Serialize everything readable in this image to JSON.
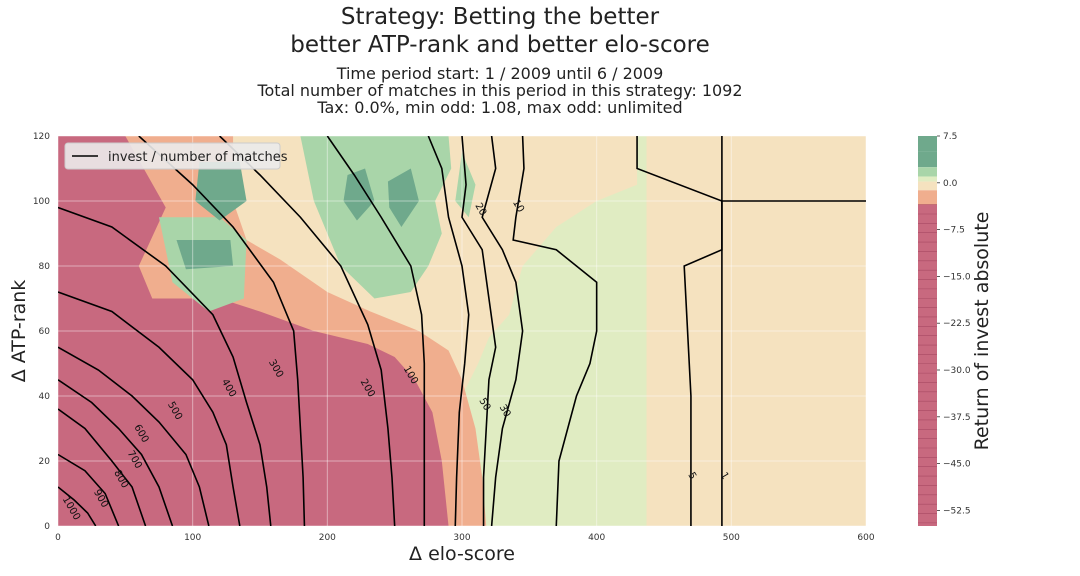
{
  "chart_data": {
    "type": "heatmap",
    "title": "Strategy: Betting the better",
    "subtitle": "better ATP-rank and better elo-score",
    "info_lines": [
      "Time period start: 1 / 2009 until 6 / 2009",
      "Total number of matches in this period in this strategy: 1092",
      "Tax: 0.0%, min odd: 1.08, max odd: unlimited"
    ],
    "xlabel": "Δ elo-score",
    "ylabel": "Δ ATP-rank",
    "colorbar_label": "Return of invest absolute",
    "xlim": [
      0,
      600
    ],
    "ylim": [
      0,
      120
    ],
    "xticks": [
      "0",
      "100",
      "200",
      "300",
      "400",
      "500",
      "600"
    ],
    "yticks": [
      "0",
      "20",
      "40",
      "60",
      "80",
      "100",
      "120"
    ],
    "colorbar_range": [
      -55,
      7.5
    ],
    "colorbar_ticks": [
      "7.5",
      "0.0",
      "−7.5",
      "−15.0",
      "−22.5",
      "−30.0",
      "−37.5",
      "−45.0",
      "−52.5"
    ],
    "legend": {
      "entries": [
        "invest / number of matches"
      ],
      "placement": "top-left"
    },
    "grid": true,
    "colors": {
      "strong_negative": "#c8697f",
      "mild_negative": "#f0ae8e",
      "near_zero": "#f5e2bf",
      "slight_positive": "#e0ecc2",
      "positive": "#a9d5a9",
      "strong_positive": "#6fa98c",
      "contour_line": "#000000"
    },
    "regions": [
      {
        "color": "slight_positive",
        "points": [
          [
            0,
            120
          ],
          [
            600,
            120
          ],
          [
            600,
            0
          ],
          [
            0,
            0
          ]
        ]
      },
      {
        "color": "near_zero",
        "points": [
          [
            0,
            120
          ],
          [
            430,
            120
          ],
          [
            430,
            105
          ],
          [
            400,
            100
          ],
          [
            370,
            92
          ],
          [
            345,
            80
          ],
          [
            335,
            65
          ],
          [
            320,
            58
          ],
          [
            312,
            50
          ],
          [
            300,
            40
          ],
          [
            290,
            28
          ],
          [
            285,
            15
          ],
          [
            282,
            0
          ],
          [
            0,
            0
          ]
        ]
      },
      {
        "color": "mild_negative",
        "points": [
          [
            0,
            120
          ],
          [
            130,
            120
          ],
          [
            130,
            100
          ],
          [
            140,
            88
          ],
          [
            165,
            82
          ],
          [
            200,
            72
          ],
          [
            232,
            66
          ],
          [
            268,
            60
          ],
          [
            290,
            54
          ],
          [
            300,
            45
          ],
          [
            310,
            30
          ],
          [
            315,
            15
          ],
          [
            318,
            0
          ],
          [
            0,
            0
          ]
        ]
      },
      {
        "color": "strong_negative",
        "points": [
          [
            0,
            120
          ],
          [
            50,
            120
          ],
          [
            80,
            98
          ],
          [
            60,
            80
          ],
          [
            70,
            70
          ],
          [
            120,
            70
          ],
          [
            150,
            66
          ],
          [
            190,
            60
          ],
          [
            230,
            56
          ],
          [
            250,
            52
          ],
          [
            265,
            45
          ],
          [
            278,
            35
          ],
          [
            285,
            20
          ],
          [
            290,
            0
          ],
          [
            0,
            0
          ]
        ]
      },
      {
        "color": "positive",
        "points": [
          [
            180,
            120
          ],
          [
            290,
            120
          ],
          [
            292,
            110
          ],
          [
            280,
            100
          ],
          [
            285,
            90
          ],
          [
            275,
            80
          ],
          [
            262,
            72
          ],
          [
            235,
            70
          ],
          [
            210,
            80
          ],
          [
            190,
            100
          ]
        ]
      },
      {
        "color": "positive",
        "points": [
          [
            75,
            95
          ],
          [
            120,
            95
          ],
          [
            140,
            88
          ],
          [
            138,
            70
          ],
          [
            112,
            66
          ],
          [
            85,
            75
          ]
        ]
      },
      {
        "color": "positive",
        "points": [
          [
            300,
            115
          ],
          [
            310,
            105
          ],
          [
            305,
            95
          ],
          [
            295,
            100
          ]
        ]
      },
      {
        "color": "strong_positive",
        "points": [
          [
            105,
            112
          ],
          [
            135,
            112
          ],
          [
            140,
            100
          ],
          [
            120,
            94
          ],
          [
            102,
            100
          ]
        ]
      },
      {
        "color": "strong_positive",
        "points": [
          [
            88,
            88
          ],
          [
            128,
            88
          ],
          [
            130,
            80
          ],
          [
            95,
            79
          ]
        ]
      },
      {
        "color": "strong_positive",
        "points": [
          [
            215,
            108
          ],
          [
            228,
            110
          ],
          [
            235,
            100
          ],
          [
            222,
            94
          ],
          [
            212,
            100
          ]
        ]
      },
      {
        "color": "strong_positive",
        "points": [
          [
            245,
            106
          ],
          [
            262,
            110
          ],
          [
            268,
            100
          ],
          [
            255,
            92
          ],
          [
            246,
            98
          ]
        ]
      },
      {
        "color": "near_zero",
        "points": [
          [
            437,
            120
          ],
          [
            600,
            120
          ],
          [
            600,
            0
          ],
          [
            437,
            0
          ]
        ]
      },
      {
        "color": "near_zero",
        "points": [
          [
            493,
            120
          ],
          [
            600,
            120
          ],
          [
            600,
            103
          ],
          [
            493,
            103
          ]
        ]
      }
    ],
    "contours": [
      {
        "label": "1",
        "label_at": [
          493,
          15
        ],
        "points": [
          [
            493,
            120
          ],
          [
            493,
            100
          ],
          [
            600,
            100
          ]
        ]
      },
      {
        "label": "",
        "label_at": null,
        "points": [
          [
            493,
            100
          ],
          [
            493,
            0
          ]
        ]
      },
      {
        "label": "5",
        "label_at": [
          469,
          15
        ],
        "points": [
          [
            430,
            120
          ],
          [
            430,
            110
          ],
          [
            493,
            100
          ],
          [
            493,
            85
          ],
          [
            465,
            80
          ],
          [
            470,
            40
          ],
          [
            470,
            0
          ]
        ]
      },
      {
        "label": "10",
        "label_at": [
          340,
          98
        ],
        "points": [
          [
            345,
            120
          ],
          [
            346,
            110
          ],
          [
            340,
            95
          ],
          [
            338,
            88
          ],
          [
            370,
            85
          ],
          [
            400,
            75
          ],
          [
            400,
            60
          ],
          [
            395,
            50
          ],
          [
            385,
            40
          ],
          [
            372,
            20
          ],
          [
            370,
            0
          ]
        ]
      },
      {
        "label": "20",
        "label_at": [
          312,
          97
        ],
        "points": [
          [
            322,
            120
          ],
          [
            325,
            110
          ],
          [
            315,
            95
          ],
          [
            330,
            85
          ],
          [
            340,
            75
          ],
          [
            345,
            60
          ],
          [
            340,
            45
          ],
          [
            330,
            30
          ],
          [
            325,
            15
          ],
          [
            322,
            0
          ]
        ]
      },
      {
        "label": "30",
        "label_at": [
          330,
          35
        ],
        "points": [
          [
            300,
            120
          ],
          [
            303,
            105
          ],
          [
            300,
            95
          ],
          [
            315,
            85
          ],
          [
            320,
            70
          ],
          [
            325,
            55
          ],
          [
            320,
            45
          ],
          [
            318,
            30
          ],
          [
            316,
            15
          ],
          [
            316,
            0
          ]
        ]
      },
      {
        "label": "50",
        "label_at": [
          315,
          37
        ],
        "points": [
          [
            275,
            120
          ],
          [
            285,
            110
          ],
          [
            290,
            95
          ],
          [
            300,
            80
          ],
          [
            305,
            65
          ],
          [
            302,
            50
          ],
          [
            298,
            35
          ],
          [
            296,
            15
          ],
          [
            295,
            0
          ]
        ]
      },
      {
        "label": "100",
        "label_at": [
          260,
          46
        ],
        "points": [
          [
            200,
            120
          ],
          [
            220,
            108
          ],
          [
            240,
            95
          ],
          [
            262,
            80
          ],
          [
            270,
            65
          ],
          [
            272,
            50
          ],
          [
            272,
            35
          ],
          [
            272,
            15
          ],
          [
            272,
            0
          ]
        ]
      },
      {
        "label": "200",
        "label_at": [
          228,
          42
        ],
        "points": [
          [
            120,
            120
          ],
          [
            150,
            108
          ],
          [
            180,
            95
          ],
          [
            210,
            80
          ],
          [
            230,
            62
          ],
          [
            240,
            48
          ],
          [
            245,
            30
          ],
          [
            248,
            15
          ],
          [
            250,
            0
          ]
        ]
      },
      {
        "label": "300",
        "label_at": [
          160,
          48
        ],
        "points": [
          [
            60,
            120
          ],
          [
            100,
            105
          ],
          [
            130,
            92
          ],
          [
            160,
            75
          ],
          [
            175,
            60
          ],
          [
            178,
            45
          ],
          [
            180,
            30
          ],
          [
            182,
            15
          ],
          [
            183,
            0
          ]
        ]
      },
      {
        "label": "400",
        "label_at": [
          125,
          42
        ],
        "points": [
          [
            0,
            98
          ],
          [
            40,
            92
          ],
          [
            80,
            80
          ],
          [
            115,
            65
          ],
          [
            130,
            52
          ],
          [
            140,
            38
          ],
          [
            150,
            25
          ],
          [
            155,
            12
          ],
          [
            158,
            0
          ]
        ]
      },
      {
        "label": "500",
        "label_at": [
          85,
          35
        ],
        "points": [
          [
            0,
            72
          ],
          [
            40,
            66
          ],
          [
            75,
            55
          ],
          [
            100,
            45
          ],
          [
            115,
            35
          ],
          [
            125,
            25
          ],
          [
            130,
            12
          ],
          [
            135,
            0
          ]
        ]
      },
      {
        "label": "600",
        "label_at": [
          60,
          28
        ],
        "points": [
          [
            0,
            55
          ],
          [
            30,
            48
          ],
          [
            55,
            40
          ],
          [
            75,
            32
          ],
          [
            95,
            22
          ],
          [
            105,
            12
          ],
          [
            112,
            0
          ]
        ]
      },
      {
        "label": "700",
        "label_at": [
          55,
          20
        ],
        "points": [
          [
            0,
            45
          ],
          [
            25,
            38
          ],
          [
            45,
            30
          ],
          [
            62,
            22
          ],
          [
            75,
            12
          ],
          [
            85,
            0
          ]
        ]
      },
      {
        "label": "800",
        "label_at": [
          45,
          14
        ],
        "points": [
          [
            0,
            36
          ],
          [
            20,
            30
          ],
          [
            40,
            20
          ],
          [
            55,
            12
          ],
          [
            65,
            0
          ]
        ]
      },
      {
        "label": "900",
        "label_at": [
          30,
          8
        ],
        "points": [
          [
            0,
            22
          ],
          [
            20,
            17
          ],
          [
            35,
            10
          ],
          [
            45,
            0
          ]
        ]
      },
      {
        "label": "1000",
        "label_at": [
          8,
          5
        ],
        "points": [
          [
            0,
            12
          ],
          [
            12,
            8
          ],
          [
            22,
            4
          ],
          [
            28,
            0
          ]
        ]
      }
    ]
  }
}
